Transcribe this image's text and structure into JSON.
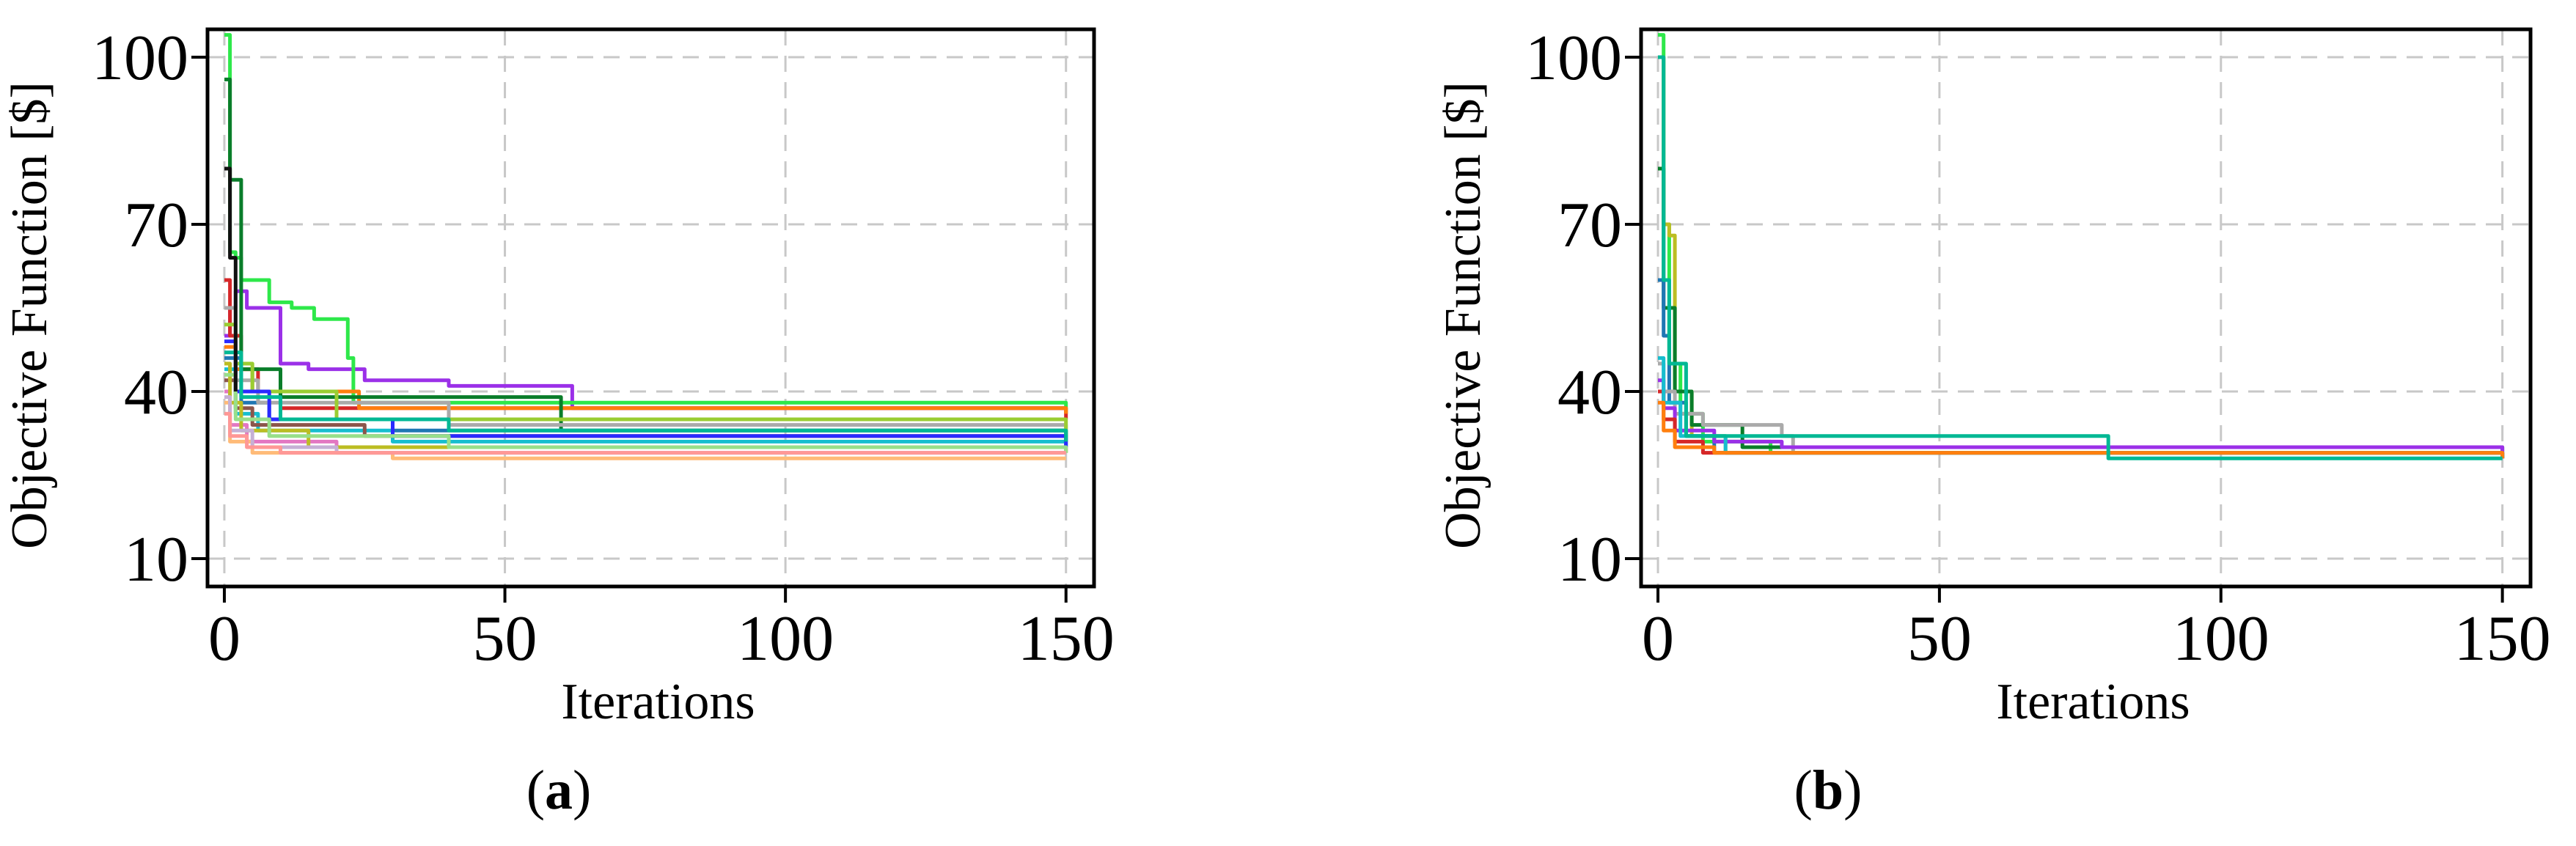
{
  "chart_data": [
    {
      "type": "line",
      "panel_label": "a",
      "xlabel": "Iterations",
      "ylabel": "Objective Function [$]",
      "xlim": [
        -3,
        155
      ],
      "ylim": [
        5,
        105
      ],
      "xticks": [
        0,
        50,
        100,
        150
      ],
      "yticks": [
        10,
        40,
        70,
        100
      ],
      "grid": true,
      "series": [
        {
          "color": "#9b30e8",
          "x": [
            0,
            1,
            2,
            4,
            6,
            10,
            15,
            25,
            40,
            60,
            62,
            150
          ],
          "y": [
            50,
            55,
            58,
            55,
            55,
            45,
            44,
            42,
            41,
            41,
            37,
            37
          ]
        },
        {
          "color": "#2ee84a",
          "x": [
            0,
            1,
            2,
            3,
            8,
            12,
            16,
            20,
            22,
            23,
            150
          ],
          "y": [
            104,
            65,
            64,
            60,
            56,
            55,
            53,
            53,
            46,
            38,
            36
          ]
        },
        {
          "color": "#d62728",
          "x": [
            0,
            1,
            3,
            6,
            10,
            150
          ],
          "y": [
            60,
            50,
            44,
            40,
            37,
            35
          ]
        },
        {
          "color": "#ff7f0e",
          "x": [
            0,
            2,
            5,
            20,
            24,
            150
          ],
          "y": [
            48,
            44,
            40,
            40,
            37,
            36
          ]
        },
        {
          "color": "#0a7d2a",
          "x": [
            0,
            1,
            3,
            10,
            60,
            150
          ],
          "y": [
            96,
            78,
            44,
            39,
            33,
            32
          ]
        },
        {
          "color": "#1f77b4",
          "x": [
            0,
            3,
            8,
            30,
            150
          ],
          "y": [
            46,
            38,
            35,
            33,
            32
          ]
        },
        {
          "color": "#aaaaaa",
          "x": [
            0,
            2,
            6,
            40,
            150
          ],
          "y": [
            55,
            42,
            38,
            34,
            33
          ]
        },
        {
          "color": "#9acd32",
          "x": [
            0,
            2,
            5,
            20,
            150
          ],
          "y": [
            52,
            45,
            40,
            35,
            31
          ]
        },
        {
          "color": "#17becf",
          "x": [
            0,
            2,
            6,
            30,
            150
          ],
          "y": [
            44,
            36,
            33,
            31,
            30
          ]
        },
        {
          "color": "#8c564b",
          "x": [
            0,
            2,
            5,
            25,
            150
          ],
          "y": [
            42,
            37,
            34,
            32,
            31
          ]
        },
        {
          "color": "#e377c2",
          "x": [
            0,
            1,
            4,
            20,
            150
          ],
          "y": [
            40,
            34,
            31,
            30,
            29
          ]
        },
        {
          "color": "#bcbd22",
          "x": [
            0,
            1,
            3,
            15,
            150
          ],
          "y": [
            45,
            38,
            33,
            30,
            29
          ]
        },
        {
          "color": "#2a2aff",
          "x": [
            0,
            2,
            8,
            30,
            150
          ],
          "y": [
            49,
            40,
            35,
            32,
            30
          ]
        },
        {
          "color": "#00b894",
          "x": [
            0,
            3,
            10,
            40,
            150
          ],
          "y": [
            47,
            39,
            35,
            33,
            31
          ]
        },
        {
          "color": "#ffbb78",
          "x": [
            0,
            1,
            5,
            30,
            150
          ],
          "y": [
            38,
            31,
            29,
            28,
            28
          ]
        },
        {
          "color": "#98df8a",
          "x": [
            0,
            2,
            8,
            40,
            150
          ],
          "y": [
            43,
            35,
            32,
            30,
            29
          ]
        },
        {
          "color": "#c5b0d5",
          "x": [
            0,
            1,
            5,
            20,
            150
          ],
          "y": [
            39,
            33,
            30,
            29,
            29
          ]
        },
        {
          "color": "#ff9896",
          "x": [
            0,
            1,
            4,
            10,
            150
          ],
          "y": [
            36,
            32,
            30,
            29,
            29
          ]
        },
        {
          "color": "#111111",
          "x": [
            0,
            1,
            2
          ],
          "y": [
            80,
            64,
            40
          ]
        }
      ]
    },
    {
      "type": "line",
      "panel_label": "b",
      "xlabel": "Iterations",
      "ylabel": "Objective Function [$]",
      "xlim": [
        -3,
        155
      ],
      "ylim": [
        5,
        105
      ],
      "xticks": [
        0,
        50,
        100,
        150
      ],
      "yticks": [
        10,
        40,
        70,
        100
      ],
      "grid": true,
      "series": [
        {
          "color": "#2ee84a",
          "x": [
            0,
            1,
            2,
            4,
            8,
            20,
            150
          ],
          "y": [
            104,
            70,
            45,
            36,
            31,
            29,
            28
          ]
        },
        {
          "color": "#bcbd22",
          "x": [
            0,
            1,
            2,
            3,
            6,
            12,
            150
          ],
          "y": [
            100,
            70,
            68,
            40,
            32,
            29,
            28
          ]
        },
        {
          "color": "#0a7d2a",
          "x": [
            0,
            1,
            3,
            6,
            15,
            150
          ],
          "y": [
            80,
            55,
            40,
            34,
            30,
            28
          ]
        },
        {
          "color": "#1f77b4",
          "x": [
            0,
            1,
            2,
            5,
            10,
            150
          ],
          "y": [
            60,
            50,
            38,
            32,
            29,
            28
          ]
        },
        {
          "color": "#aaaaaa",
          "x": [
            0,
            1,
            3,
            8,
            22,
            24,
            150
          ],
          "y": [
            45,
            40,
            36,
            34,
            32,
            29,
            29
          ]
        },
        {
          "color": "#9b30e8",
          "x": [
            0,
            1,
            3,
            10,
            22,
            150
          ],
          "y": [
            42,
            37,
            33,
            31,
            30,
            28
          ]
        },
        {
          "color": "#d62728",
          "x": [
            0,
            1,
            3,
            8,
            150
          ],
          "y": [
            40,
            35,
            31,
            29,
            28
          ]
        },
        {
          "color": "#17becf",
          "x": [
            0,
            1,
            4,
            12,
            150
          ],
          "y": [
            46,
            38,
            32,
            29,
            28
          ]
        },
        {
          "color": "#ff7f0e",
          "x": [
            0,
            1,
            3,
            10,
            150
          ],
          "y": [
            38,
            33,
            30,
            29,
            28
          ]
        },
        {
          "color": "#00b894",
          "x": [
            0,
            1,
            2,
            5,
            80,
            150
          ],
          "y": [
            100,
            60,
            45,
            32,
            28,
            28
          ]
        }
      ]
    }
  ]
}
